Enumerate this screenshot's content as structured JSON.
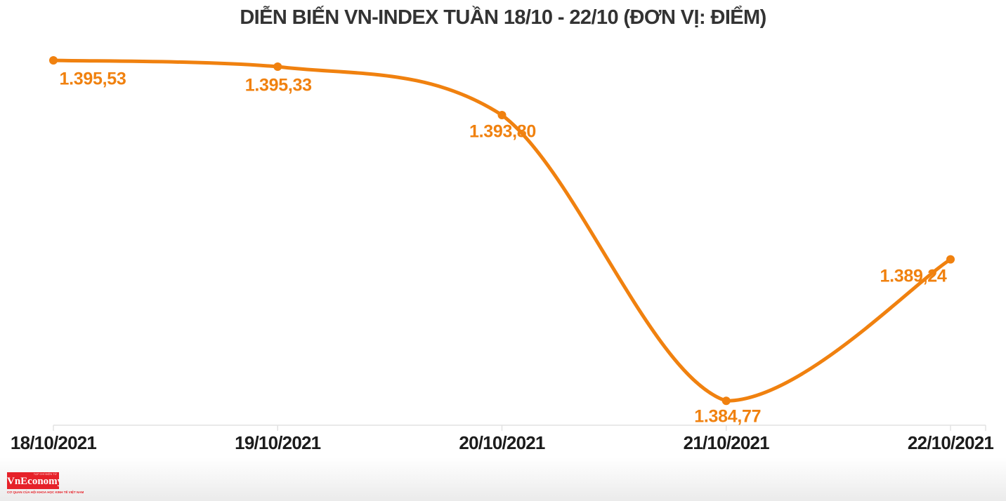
{
  "header": {
    "title": "DIỄN BIẾN VN-INDEX TUẦN 18/10 - 22/10 (ĐƠN VỊ: ĐIỂM)"
  },
  "chart_data": {
    "type": "line",
    "title": "DIỄN BIẾN VN-INDEX TUẦN 18/10 - 22/10 (ĐƠN VỊ: ĐIỂM)",
    "categories": [
      "18/10/2021",
      "19/10/2021",
      "20/10/2021",
      "21/10/2021",
      "22/10/2021"
    ],
    "values": [
      1395.53,
      1395.33,
      1393.8,
      1384.77,
      1389.24
    ],
    "point_labels": [
      "1.395,53",
      "1.395,33",
      "1.393,80",
      "1.384,77",
      "1.389,24"
    ],
    "xlabel": "",
    "ylabel": "",
    "ylim": [
      1384.0,
      1396.55
    ],
    "smooth": true,
    "grid": false,
    "legend_position": "none",
    "line_color": "#f0810f",
    "point_color": "#f0810f",
    "value_label_color": "#f0810f",
    "axis_line_color": "#e2e2e2",
    "axis_text_color": "#1c1c1c",
    "title_color": "#333333"
  },
  "footer": {
    "logo_text": "VnEconomy",
    "logo_top_text": "TẠP CHÍ ĐIỆN TỬ",
    "logo_sub_text": "CƠ QUAN CỦA HỘI KHOA HỌC KINH TẾ VIỆT NAM",
    "logo_bg": "#e62129"
  }
}
